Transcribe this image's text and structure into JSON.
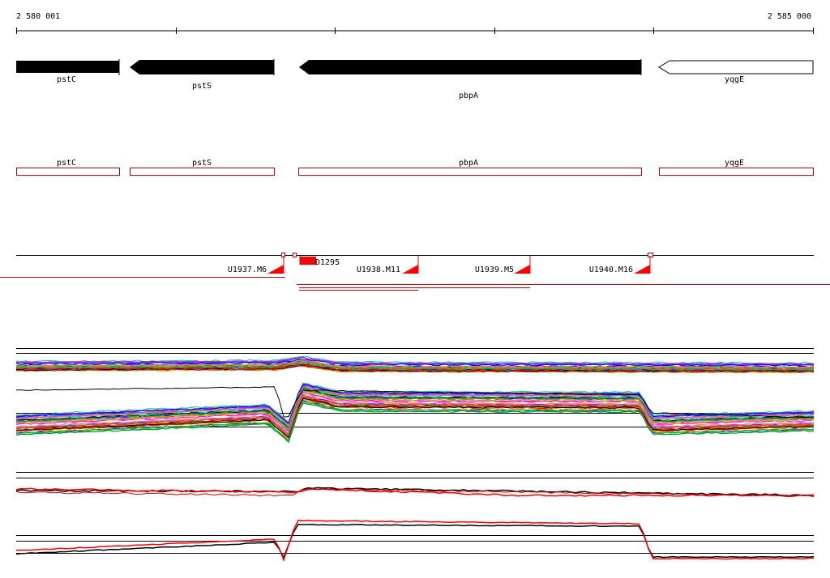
{
  "ruler": {
    "start_label": "2 580 001",
    "end_label": "2 585 000"
  },
  "genes": [
    {
      "name": "pstC",
      "strand": "-",
      "fill": "black"
    },
    {
      "name": "pstS",
      "strand": "-",
      "fill": "black"
    },
    {
      "name": "pbpA",
      "strand": "-",
      "fill": "black"
    },
    {
      "name": "yqgE",
      "strand": "-",
      "fill": "white"
    }
  ],
  "gene_boxes": [
    {
      "name": "pstC"
    },
    {
      "name": "pstS"
    },
    {
      "name": "pbpA"
    },
    {
      "name": "yqgE"
    }
  ],
  "segments": [
    {
      "name": "U1937.M6"
    },
    {
      "name": "D1295"
    },
    {
      "name": "U1938.M11"
    },
    {
      "name": "U1939.M5"
    },
    {
      "name": "U1940.M16"
    }
  ],
  "colors": {
    "gene_fill": "#000000",
    "box_stroke": "#cc0000",
    "segment_red": "#ff0000",
    "line_red": "#cc0000",
    "axis": "#000000"
  }
}
